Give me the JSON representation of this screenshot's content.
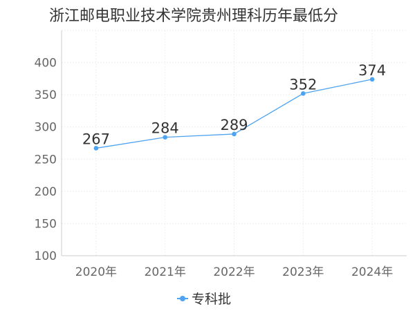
{
  "chart_data": {
    "type": "line",
    "title": "浙江邮电职业技术学院贵州理科历年最低分",
    "categories": [
      "2020年",
      "2021年",
      "2022年",
      "2023年",
      "2024年"
    ],
    "series": [
      {
        "name": "专科批",
        "values": [
          267,
          284,
          289,
          352,
          374
        ],
        "color": "#4da3f0"
      }
    ],
    "yticks": [
      100,
      150,
      200,
      250,
      300,
      350,
      400
    ],
    "ylim": [
      100,
      450
    ],
    "grid": true,
    "legend_position": "bottom-center",
    "xlabel": "",
    "ylabel": ""
  }
}
